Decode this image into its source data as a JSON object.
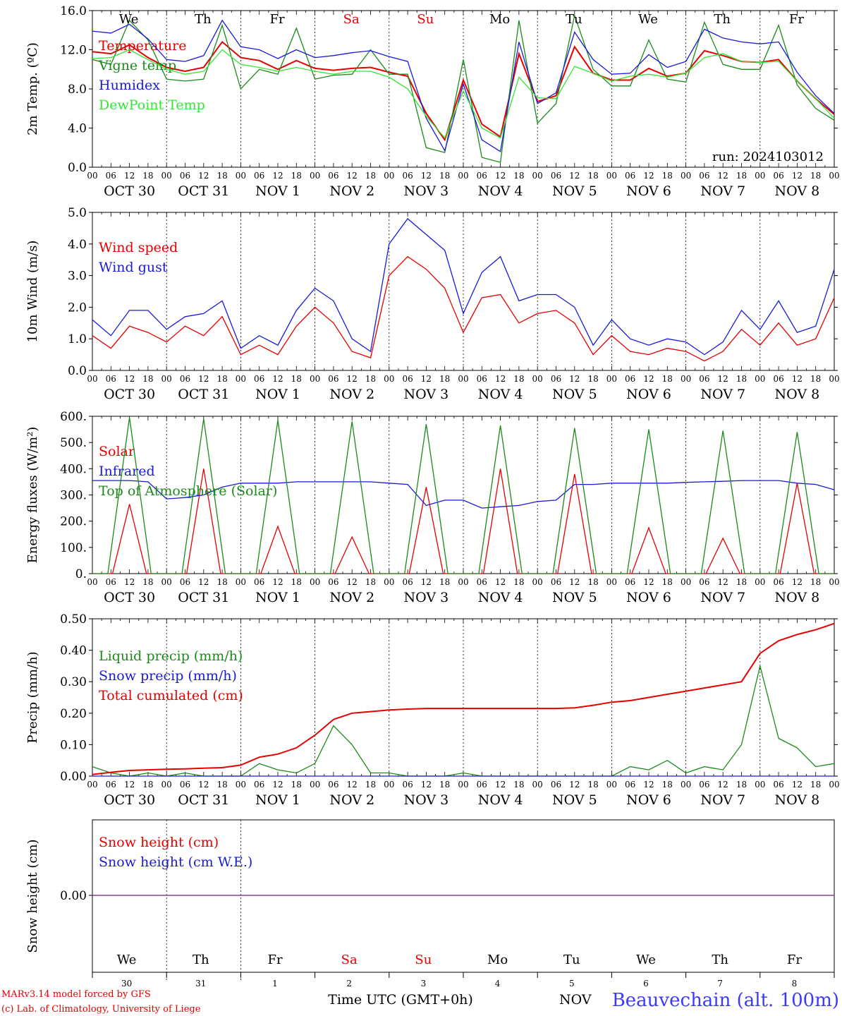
{
  "colors": {
    "red": "#e60000",
    "darkgreen": "#1b8a1b",
    "blue": "#1a1ad9",
    "lightgreen": "#33e633",
    "weekend": "#e60000",
    "snow": "#8a3a8a"
  },
  "weekdays": [
    "We",
    "Th",
    "Fr",
    "Sa",
    "Su",
    "Mo",
    "Tu",
    "We",
    "Th",
    "Fr"
  ],
  "weekend_days": [
    "Sa",
    "Su"
  ],
  "date_labels": [
    "OCT 30",
    "OCT 31",
    "NOV  1",
    "NOV  2",
    "NOV  3",
    "NOV  4",
    "NOV  5",
    "NOV  6",
    "NOV  7",
    "NOV  8"
  ],
  "hour_ticks": [
    "00",
    "06",
    "12",
    "18"
  ],
  "bottom_days": [
    "30",
    "31",
    "1",
    "2",
    "3",
    "4",
    "5",
    "6",
    "7",
    "8"
  ],
  "footer": {
    "model": "MARv3.14 model forced by GFS",
    "copyright": "(c) Lab. of Climatology, University of Liege",
    "xlabel": "Time UTC (GMT+0h)",
    "nov": "NOV",
    "station": "Beauvechain (alt. 100m)"
  },
  "chart_data": [
    {
      "type": "line",
      "ylabel": "2m Temp. (ºC)",
      "ylim": [
        0,
        16
      ],
      "yticks": [
        "0.0",
        "4.0",
        "8.0",
        "12.0",
        "16.0"
      ],
      "annotation": "run: 2024103012",
      "x_unit": "hours since OCT 30 00 UTC",
      "series": [
        {
          "name": "Temperature",
          "color": "red",
          "x": [
            0,
            6,
            12,
            18,
            24,
            30,
            36,
            42,
            48,
            54,
            60,
            66,
            72,
            78,
            84,
            90,
            96,
            102,
            108,
            114,
            120,
            126,
            132,
            138,
            144,
            150,
            156,
            162,
            168,
            174,
            180,
            186,
            192,
            198,
            204,
            210,
            216,
            222,
            228,
            234,
            240
          ],
          "values": [
            11.8,
            11.6,
            12.5,
            11.2,
            10.2,
            9.8,
            10.2,
            12.8,
            11.2,
            10.9,
            10.0,
            10.9,
            10.1,
            9.9,
            10.1,
            10.2,
            9.7,
            9.3,
            5.5,
            2.8,
            8.9,
            4.4,
            3.1,
            11.6,
            6.7,
            7.3,
            12.3,
            9.6,
            8.9,
            8.9,
            10.1,
            9.3,
            9.6,
            11.9,
            11.4,
            10.8,
            10.7,
            11.0,
            8.8,
            7.0,
            5.4
          ]
        },
        {
          "name": "Vigne temp",
          "color": "darkgreen",
          "x": [
            0,
            6,
            12,
            18,
            24,
            30,
            36,
            42,
            48,
            54,
            60,
            66,
            72,
            78,
            84,
            90,
            96,
            102,
            108,
            114,
            120,
            126,
            132,
            138,
            144,
            150,
            156,
            162,
            168,
            174,
            180,
            186,
            192,
            198,
            204,
            210,
            216,
            222,
            228,
            234,
            240
          ],
          "values": [
            11.0,
            10.5,
            15.0,
            13.0,
            9.0,
            8.8,
            9.0,
            14.5,
            8.0,
            10.0,
            9.5,
            14.2,
            9.0,
            9.4,
            9.5,
            12.0,
            9.5,
            9.5,
            2.0,
            1.5,
            11.0,
            1.0,
            0.5,
            15.0,
            4.5,
            6.5,
            15.5,
            10.0,
            8.3,
            8.3,
            13.0,
            9.0,
            8.7,
            14.8,
            10.5,
            10.0,
            10.0,
            14.5,
            8.4,
            6.0,
            4.8
          ]
        },
        {
          "name": "Humidex",
          "color": "blue",
          "x": [
            0,
            6,
            12,
            18,
            24,
            30,
            36,
            42,
            48,
            54,
            60,
            66,
            72,
            78,
            84,
            90,
            96,
            102,
            108,
            114,
            120,
            126,
            132,
            138,
            144,
            150,
            156,
            162,
            168,
            174,
            180,
            186,
            192,
            198,
            204,
            210,
            216,
            222,
            228,
            234,
            240
          ],
          "values": [
            13.9,
            13.7,
            14.6,
            13.1,
            11.0,
            10.8,
            11.4,
            15.0,
            12.3,
            12.0,
            11.1,
            12.0,
            11.2,
            11.4,
            11.7,
            11.9,
            11.3,
            10.8,
            5.0,
            1.7,
            8.5,
            2.8,
            1.6,
            12.8,
            6.5,
            7.6,
            13.8,
            11.0,
            9.5,
            9.6,
            11.5,
            10.2,
            10.8,
            14.1,
            13.2,
            12.8,
            12.6,
            12.8,
            9.7,
            7.3,
            5.5
          ]
        },
        {
          "name": "DewPoint Temp",
          "color": "lightgreen",
          "x": [
            0,
            6,
            12,
            18,
            24,
            30,
            36,
            42,
            48,
            54,
            60,
            66,
            72,
            78,
            84,
            90,
            96,
            102,
            108,
            114,
            120,
            126,
            132,
            138,
            144,
            150,
            156,
            162,
            168,
            174,
            180,
            186,
            192,
            198,
            204,
            210,
            216,
            222,
            228,
            234,
            240
          ],
          "values": [
            11.1,
            11.2,
            12.0,
            11.0,
            10.0,
            9.5,
            9.8,
            12.0,
            10.5,
            10.2,
            9.8,
            10.2,
            9.8,
            9.5,
            9.8,
            9.8,
            9.2,
            8.0,
            5.2,
            3.0,
            7.8,
            4.0,
            3.0,
            9.2,
            7.1,
            7.0,
            10.3,
            9.6,
            8.8,
            9.3,
            9.5,
            9.2,
            9.6,
            11.2,
            11.6,
            10.8,
            10.7,
            10.8,
            8.8,
            7.0,
            5.0
          ]
        }
      ]
    },
    {
      "type": "line",
      "ylabel": "10m Wind (m/s)",
      "ylim": [
        0,
        5
      ],
      "yticks": [
        "0.0",
        "1.0",
        "2.0",
        "3.0",
        "4.0",
        "5.0"
      ],
      "x_unit": "hours since OCT 30 00 UTC",
      "series": [
        {
          "name": "Wind speed",
          "color": "red",
          "x": [
            0,
            6,
            12,
            18,
            24,
            30,
            36,
            42,
            48,
            54,
            60,
            66,
            72,
            78,
            84,
            90,
            96,
            102,
            108,
            114,
            120,
            126,
            132,
            138,
            144,
            150,
            156,
            162,
            168,
            174,
            180,
            186,
            192,
            198,
            204,
            210,
            216,
            222,
            228,
            234,
            240
          ],
          "values": [
            1.1,
            0.7,
            1.4,
            1.2,
            0.9,
            1.4,
            1.1,
            1.7,
            0.5,
            0.8,
            0.5,
            1.4,
            2.0,
            1.5,
            0.6,
            0.4,
            3.0,
            3.6,
            3.2,
            2.6,
            1.2,
            2.3,
            2.4,
            1.5,
            1.8,
            1.9,
            1.5,
            0.5,
            1.1,
            0.6,
            0.5,
            0.7,
            0.6,
            0.3,
            0.6,
            1.3,
            0.8,
            1.5,
            0.8,
            1.0,
            2.3
          ]
        },
        {
          "name": "Wind gust",
          "color": "blue",
          "x": [
            0,
            6,
            12,
            18,
            24,
            30,
            36,
            42,
            48,
            54,
            60,
            66,
            72,
            78,
            84,
            90,
            96,
            102,
            108,
            114,
            120,
            126,
            132,
            138,
            144,
            150,
            156,
            162,
            168,
            174,
            180,
            186,
            192,
            198,
            204,
            210,
            216,
            222,
            228,
            234,
            240
          ],
          "values": [
            1.6,
            1.1,
            1.9,
            1.9,
            1.3,
            1.7,
            1.8,
            2.2,
            0.7,
            1.1,
            0.8,
            1.9,
            2.6,
            2.2,
            1.0,
            0.6,
            4.0,
            4.8,
            4.3,
            3.8,
            1.8,
            3.1,
            3.6,
            2.2,
            2.4,
            2.4,
            2.0,
            0.8,
            1.6,
            1.0,
            0.8,
            1.0,
            0.9,
            0.5,
            0.9,
            1.9,
            1.3,
            2.2,
            1.2,
            1.4,
            3.2
          ]
        }
      ]
    },
    {
      "type": "line",
      "ylabel": "Energy fluxes (W/m²)",
      "ylim": [
        0,
        600
      ],
      "yticks": [
        "0.",
        "100.",
        "200.",
        "300.",
        "400.",
        "500.",
        "600."
      ],
      "x_unit": "hours since OCT 30 00 UTC",
      "series": [
        {
          "name": "Solar",
          "color": "red",
          "peaks": [
            {
              "x": 12,
              "value": 265
            },
            {
              "x": 36,
              "value": 400
            },
            {
              "x": 60,
              "value": 180
            },
            {
              "x": 84,
              "value": 140
            },
            {
              "x": 108,
              "value": 330
            },
            {
              "x": 132,
              "value": 400
            },
            {
              "x": 156,
              "value": 380
            },
            {
              "x": 180,
              "value": 175
            },
            {
              "x": 204,
              "value": 135
            },
            {
              "x": 228,
              "value": 345
            }
          ]
        },
        {
          "name": "Infrared",
          "color": "blue",
          "x": [
            0,
            6,
            12,
            18,
            24,
            30,
            36,
            42,
            48,
            54,
            60,
            66,
            72,
            78,
            84,
            90,
            96,
            102,
            108,
            114,
            120,
            126,
            132,
            138,
            144,
            150,
            156,
            162,
            168,
            174,
            180,
            186,
            192,
            198,
            204,
            210,
            216,
            222,
            228,
            234,
            240
          ],
          "values": [
            355,
            355,
            355,
            350,
            285,
            290,
            300,
            330,
            345,
            345,
            345,
            350,
            350,
            350,
            350,
            350,
            345,
            340,
            260,
            280,
            280,
            250,
            255,
            260,
            275,
            280,
            340,
            340,
            345,
            345,
            345,
            345,
            348,
            350,
            352,
            355,
            355,
            355,
            345,
            340,
            320
          ]
        },
        {
          "name": "Top of Atmosphere (Solar)",
          "color": "darkgreen",
          "peaks": [
            {
              "x": 12,
              "value": 595
            },
            {
              "x": 36,
              "value": 590
            },
            {
              "x": 60,
              "value": 585
            },
            {
              "x": 84,
              "value": 580
            },
            {
              "x": 108,
              "value": 570
            },
            {
              "x": 132,
              "value": 565
            },
            {
              "x": 156,
              "value": 555
            },
            {
              "x": 180,
              "value": 550
            },
            {
              "x": 204,
              "value": 545
            },
            {
              "x": 228,
              "value": 540
            }
          ]
        }
      ]
    },
    {
      "type": "line",
      "ylabel": "Precip (mm/h)",
      "ylim": [
        0,
        0.5
      ],
      "yticks": [
        "0.00",
        "0.10",
        "0.20",
        "0.30",
        "0.40",
        "0.50"
      ],
      "x_unit": "hours since OCT 30 00 UTC",
      "series": [
        {
          "name": "Liquid precip (mm/h)",
          "color": "darkgreen",
          "x": [
            0,
            6,
            12,
            18,
            24,
            30,
            36,
            42,
            48,
            54,
            60,
            66,
            72,
            78,
            84,
            90,
            96,
            102,
            108,
            114,
            120,
            126,
            132,
            138,
            144,
            150,
            156,
            162,
            168,
            174,
            180,
            186,
            192,
            198,
            204,
            210,
            216,
            222,
            228,
            234,
            240
          ],
          "values": [
            0.03,
            0.01,
            0.0,
            0.01,
            0.0,
            0.01,
            0.0,
            0.0,
            0.0,
            0.04,
            0.02,
            0.01,
            0.04,
            0.16,
            0.1,
            0.01,
            0.01,
            0.0,
            0.0,
            0.0,
            0.01,
            0.0,
            0.0,
            0.0,
            0.0,
            0.0,
            0.0,
            0.0,
            0.0,
            0.03,
            0.02,
            0.05,
            0.01,
            0.03,
            0.02,
            0.1,
            0.35,
            0.12,
            0.09,
            0.03,
            0.04
          ]
        },
        {
          "name": "Snow precip (mm/h)",
          "color": "blue",
          "x": [
            0,
            240
          ],
          "values": [
            0,
            0
          ]
        },
        {
          "name": "Total cumulated (cm)",
          "color": "red",
          "x": [
            0,
            6,
            12,
            18,
            24,
            30,
            36,
            42,
            48,
            54,
            60,
            66,
            72,
            78,
            84,
            90,
            96,
            102,
            108,
            114,
            120,
            126,
            132,
            138,
            144,
            150,
            156,
            162,
            168,
            174,
            180,
            186,
            192,
            198,
            204,
            210,
            216,
            222,
            228,
            234,
            240
          ],
          "values": [
            0.005,
            0.012,
            0.018,
            0.02,
            0.022,
            0.023,
            0.025,
            0.027,
            0.035,
            0.06,
            0.07,
            0.09,
            0.13,
            0.18,
            0.2,
            0.205,
            0.21,
            0.213,
            0.215,
            0.215,
            0.215,
            0.215,
            0.215,
            0.215,
            0.215,
            0.215,
            0.217,
            0.225,
            0.235,
            0.24,
            0.25,
            0.26,
            0.27,
            0.28,
            0.29,
            0.3,
            0.39,
            0.43,
            0.45,
            0.465,
            0.485
          ]
        }
      ]
    },
    {
      "type": "line",
      "ylabel": "Snow height (cm)",
      "yticks": [
        "0.00"
      ],
      "x_unit": "hours since OCT 30 00 UTC",
      "series": [
        {
          "name": "Snow height (cm)",
          "color": "red",
          "x": [
            0,
            240
          ],
          "values": [
            0,
            0
          ]
        },
        {
          "name": "Snow height (cm W.E.)",
          "color": "blue",
          "x": [
            0,
            240
          ],
          "values": [
            0,
            0
          ]
        }
      ]
    }
  ]
}
